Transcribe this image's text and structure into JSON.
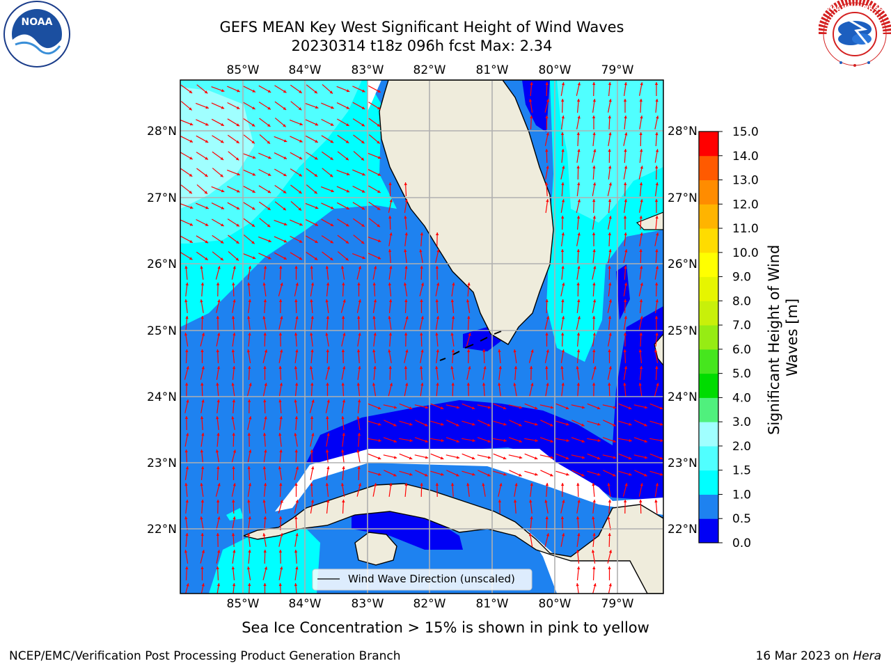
{
  "header": {
    "title_line1": "GEFS MEAN Key West Significant Height of Wind Waves",
    "title_line2": "20230314 t18z 096h fcst   Max: 2.34"
  },
  "map": {
    "lon_labels": [
      "85°W",
      "84°W",
      "83°W",
      "82°W",
      "81°W",
      "80°W",
      "79°W"
    ],
    "lat_labels": [
      "28°N",
      "27°N",
      "26°N",
      "25°N",
      "24°N",
      "23°N",
      "22°N"
    ],
    "legend_label": "Wind Wave Direction (unscaled)",
    "arrow_color": "#ff0000",
    "land_color": "#efecdc",
    "grid_color": "#b0b0b0"
  },
  "colorbar": {
    "label": "Significant Height of Wind Waves [m]",
    "ticks": [
      "0.0",
      "0.5",
      "1.0",
      "1.5",
      "2.0",
      "3.0",
      "4.0",
      "5.0",
      "6.0",
      "7.0",
      "8.0",
      "9.0",
      "10.0",
      "11.0",
      "12.0",
      "13.0",
      "14.0",
      "15.0"
    ],
    "colors": [
      "#0000f5",
      "#1e82f0",
      "#00ffff",
      "#50ffff",
      "#a0ffff",
      "#50f07d",
      "#00dc00",
      "#46e61e",
      "#96ec14",
      "#c8f00a",
      "#e6f500",
      "#ffff00",
      "#ffdc00",
      "#ffb400",
      "#ff8c00",
      "#ff5a00",
      "#ff0000"
    ]
  },
  "note": "Sea Ice Concentration > 15% is shown in pink to yellow",
  "footer": {
    "left": "NCEP/EMC/Verification Post Processing Product Generation Branch",
    "right_prefix": "16 Mar 2023 on ",
    "right_host": "Hera"
  },
  "logos": {
    "noaa": "NOAA",
    "nws": "NATIONAL WEATHER SERVICE"
  }
}
